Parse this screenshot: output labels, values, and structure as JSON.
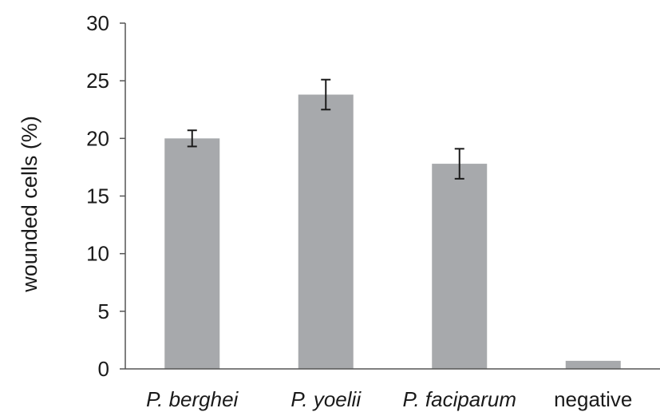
{
  "chart_data": {
    "type": "bar",
    "title": "",
    "xlabel": "",
    "ylabel": "wounded cells (%)",
    "ylim": [
      0,
      30
    ],
    "yticks": [
      0,
      5,
      10,
      15,
      20,
      25,
      30
    ],
    "categories": [
      "P. berghei",
      "P. yoelii",
      "P. faciparum",
      "negative"
    ],
    "italic_categories": [
      true,
      true,
      true,
      false
    ],
    "values": [
      20.0,
      23.8,
      17.8,
      0.7
    ],
    "errors": [
      0.7,
      1.3,
      1.3,
      null
    ],
    "bar_color": "#a7a9ac",
    "error_color": "#1a1a1a",
    "axis_color": "#555555",
    "grid": false,
    "legend": "none"
  }
}
